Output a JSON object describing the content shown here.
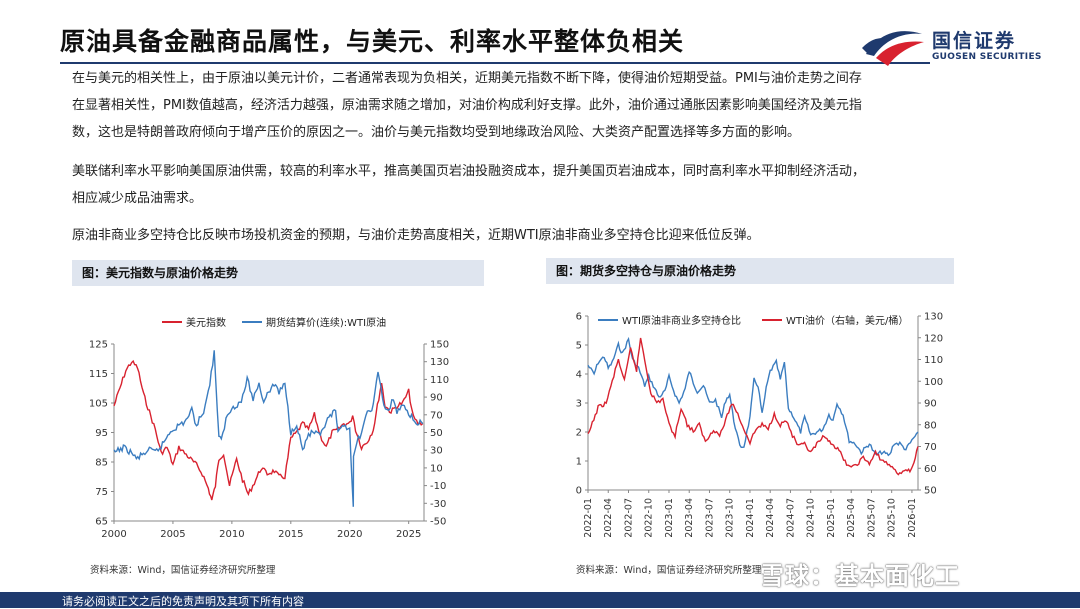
{
  "header": {
    "title": "原油具备金融商品属性，与美元、利率水平整体负相关",
    "logo_cn": "国信证券",
    "logo_en": "GUOSEN SECURITIES"
  },
  "body": {
    "para1_lines": [
      "在与美元的相关性上，由于原油以美元计价，二者通常表现为负相关，近期美元指数不断下降，使得油价短期受益。PMI与油价走势之间存",
      "在显著相关性，PMI数值越高，经济活力越强，原油需求随之增加，对油价构成利好支撑。此外，油价通过通胀因素影响美国经济及美元指",
      "数，这也是特朗普政府倾向于增产压价的原因之一。油价与美元指数均受到地缘政治风险、大类资产配置选择等多方面的影响。"
    ],
    "para2_lines": [
      "美联储利率水平影响美国原油供需，较高的利率水平，推高美国页岩油投融资成本，提升美国页岩油成本，同时高利率水平抑制经济活动，",
      "相应减少成品油需求。"
    ],
    "para3_lines": [
      "原油非商业多空持仓比反映市场投机资金的预期，与油价走势高度相关，近期WTI原油非商业多空持仓比迎来低位反弹。"
    ]
  },
  "left_panel": {
    "heading": "图：美元指数与原油价格走势",
    "source": "资料来源：Wind，国信证券经济研究所整理"
  },
  "right_panel": {
    "heading": "图：期货多空持仓与原油价格走势",
    "source": "资料来源：Wind，国信证券经济研究所整理"
  },
  "footer": {
    "text": "请务必阅读正文之后的免责声明及其项下所有内容"
  },
  "watermark": "雪球：基本面化工",
  "colors": {
    "navy": "#1f3a6e",
    "red": "#d8222f",
    "blue": "#3b7dc0",
    "logo_red": "#d8222f"
  },
  "chart_data": [
    {
      "type": "line",
      "title": "美元指数与原油价格走势",
      "legend": [
        "美元指数",
        "期货结算价(连续):WTI原油"
      ],
      "x_ticks": [
        "2000",
        "2005",
        "2010",
        "2015",
        "2020",
        "2025"
      ],
      "x_range": [
        2000,
        2026.3
      ],
      "y_left_ticks": [
        "125",
        "115",
        "105",
        "95",
        "85",
        "75",
        "65"
      ],
      "y_left_range": [
        65,
        125
      ],
      "y_right_ticks": [
        "150",
        "130",
        "110",
        "90",
        "70",
        "50",
        "30",
        "10",
        "-10",
        "-30",
        "-50"
      ],
      "y_right_range": [
        -50,
        150
      ],
      "series": [
        {
          "name": "美元指数",
          "axis": "left",
          "points": [
            [
              2000,
              104
            ],
            [
              2001,
              116
            ],
            [
              2001.5,
              119
            ],
            [
              2002,
              117
            ],
            [
              2002.5,
              108
            ],
            [
              2003,
              102
            ],
            [
              2003.5,
              96
            ],
            [
              2004,
              88
            ],
            [
              2004.5,
              90
            ],
            [
              2005,
              84
            ],
            [
              2005.5,
              90
            ],
            [
              2006,
              88
            ],
            [
              2006.5,
              86
            ],
            [
              2007,
              84
            ],
            [
              2007.5,
              81
            ],
            [
              2008,
              76
            ],
            [
              2008.3,
              72
            ],
            [
              2008.6,
              77
            ],
            [
              2008.9,
              86
            ],
            [
              2009.3,
              88
            ],
            [
              2009.8,
              77
            ],
            [
              2010.4,
              86
            ],
            [
              2010.9,
              79
            ],
            [
              2011.4,
              74
            ],
            [
              2011.9,
              78
            ],
            [
              2012.5,
              83
            ],
            [
              2013,
              81
            ],
            [
              2013.6,
              82
            ],
            [
              2014,
              80
            ],
            [
              2014.5,
              80
            ],
            [
              2015,
              93
            ],
            [
              2015.5,
              95
            ],
            [
              2016,
              98
            ],
            [
              2016.5,
              96
            ],
            [
              2017,
              101
            ],
            [
              2017.5,
              94
            ],
            [
              2018,
              90
            ],
            [
              2018.5,
              95
            ],
            [
              2019,
              96
            ],
            [
              2019.5,
              98
            ],
            [
              2020,
              98
            ],
            [
              2020.25,
              101
            ],
            [
              2020.5,
              96
            ],
            [
              2021,
              90
            ],
            [
              2021.5,
              92
            ],
            [
              2022,
              96
            ],
            [
              2022.7,
              112
            ],
            [
              2023,
              104
            ],
            [
              2023.5,
              102
            ],
            [
              2024,
              104
            ],
            [
              2024.5,
              105
            ],
            [
              2025,
              109
            ],
            [
              2025.4,
              100
            ],
            [
              2025.8,
              98
            ],
            [
              2026.2,
              98
            ]
          ]
        },
        {
          "name": "期货结算价(连续):WTI原油",
          "axis": "right",
          "points": [
            [
              2000,
              27
            ],
            [
              2000.8,
              33
            ],
            [
              2001.5,
              27
            ],
            [
              2001.9,
              20
            ],
            [
              2002.5,
              26
            ],
            [
              2003,
              30
            ],
            [
              2003.5,
              28
            ],
            [
              2004,
              34
            ],
            [
              2004.8,
              52
            ],
            [
              2005.5,
              58
            ],
            [
              2006,
              62
            ],
            [
              2006.6,
              75
            ],
            [
              2007,
              58
            ],
            [
              2007.6,
              75
            ],
            [
              2008,
              95
            ],
            [
              2008.5,
              140
            ],
            [
              2008.9,
              45
            ],
            [
              2009.1,
              40
            ],
            [
              2009.5,
              65
            ],
            [
              2010,
              78
            ],
            [
              2010.8,
              85
            ],
            [
              2011.3,
              110
            ],
            [
              2011.8,
              88
            ],
            [
              2012.3,
              105
            ],
            [
              2012.7,
              85
            ],
            [
              2013,
              95
            ],
            [
              2013.7,
              105
            ],
            [
              2014,
              95
            ],
            [
              2014.5,
              105
            ],
            [
              2015,
              50
            ],
            [
              2015.5,
              60
            ],
            [
              2016,
              30
            ],
            [
              2016.5,
              48
            ],
            [
              2017,
              50
            ],
            [
              2017.5,
              45
            ],
            [
              2018,
              62
            ],
            [
              2018.8,
              75
            ],
            [
              2019,
              48
            ],
            [
              2019.5,
              58
            ],
            [
              2020,
              55
            ],
            [
              2020.3,
              -37
            ],
            [
              2020.32,
              20
            ],
            [
              2020.6,
              40
            ],
            [
              2021,
              50
            ],
            [
              2021.5,
              72
            ],
            [
              2022,
              80
            ],
            [
              2022.4,
              120
            ],
            [
              2022.9,
              80
            ],
            [
              2023.3,
              72
            ],
            [
              2023.7,
              90
            ],
            [
              2024,
              72
            ],
            [
              2024.5,
              82
            ],
            [
              2025,
              72
            ],
            [
              2025.5,
              62
            ],
            [
              2026.2,
              60
            ]
          ]
        }
      ]
    },
    {
      "type": "line",
      "title": "期货多空持仓与原油价格走势",
      "legend": [
        "WTI原油非商业多空持仓比",
        "WTI油价（右轴，美元/桶）"
      ],
      "x_ticks": [
        "2022-01",
        "2022-04",
        "2022-07",
        "2022-10",
        "2023-01",
        "2023-04",
        "2023-07",
        "2023-10",
        "2024-01",
        "2024-04",
        "2024-07",
        "2024-10",
        "2025-01",
        "2025-04",
        "2025-07",
        "2025-10",
        "2026-01"
      ],
      "x_range": [
        0,
        16.3
      ],
      "y_left_ticks": [
        "6",
        "5",
        "4",
        "3",
        "2",
        "1",
        "0"
      ],
      "y_left_range": [
        0,
        6
      ],
      "y_right_ticks": [
        "130",
        "120",
        "110",
        "100",
        "90",
        "80",
        "70",
        "60",
        "50"
      ],
      "y_right_range": [
        50,
        130
      ],
      "series": [
        {
          "name": "WTI原油非商业多空持仓比",
          "axis": "left",
          "points": [
            [
              0,
              4.3
            ],
            [
              0.3,
              4.0
            ],
            [
              0.5,
              4.4
            ],
            [
              0.8,
              4.6
            ],
            [
              1.0,
              4.2
            ],
            [
              1.2,
              4.4
            ],
            [
              1.5,
              5.0
            ],
            [
              1.7,
              4.7
            ],
            [
              2.0,
              5.2
            ],
            [
              2.2,
              4.5
            ],
            [
              2.5,
              4.2
            ],
            [
              2.8,
              3.6
            ],
            [
              3.0,
              3.9
            ],
            [
              3.3,
              3.5
            ],
            [
              3.5,
              3.2
            ],
            [
              3.8,
              3.4
            ],
            [
              4.0,
              3.9
            ],
            [
              4.3,
              3.3
            ],
            [
              4.5,
              3.0
            ],
            [
              4.8,
              3.5
            ],
            [
              5.0,
              4.1
            ],
            [
              5.2,
              3.7
            ],
            [
              5.4,
              3.4
            ],
            [
              5.7,
              3.6
            ],
            [
              6.0,
              3.0
            ],
            [
              6.3,
              3.1
            ],
            [
              6.6,
              2.5
            ],
            [
              6.8,
              3.1
            ],
            [
              7.0,
              3.3
            ],
            [
              7.2,
              2.4
            ],
            [
              7.5,
              1.5
            ],
            [
              7.7,
              1.5
            ],
            [
              8.0,
              2.5
            ],
            [
              8.2,
              3.8
            ],
            [
              8.4,
              3.6
            ],
            [
              8.6,
              2.6
            ],
            [
              8.8,
              3.5
            ],
            [
              9.0,
              4.1
            ],
            [
              9.3,
              4.4
            ],
            [
              9.5,
              3.8
            ],
            [
              9.7,
              4.4
            ],
            [
              9.9,
              2.8
            ],
            [
              10.1,
              2.6
            ],
            [
              10.5,
              2.0
            ],
            [
              10.7,
              2.5
            ],
            [
              11.0,
              1.9
            ],
            [
              11.3,
              2.0
            ],
            [
              11.6,
              2.1
            ],
            [
              11.9,
              2.6
            ],
            [
              12.1,
              2.4
            ],
            [
              12.3,
              3.0
            ],
            [
              12.6,
              2.6
            ],
            [
              12.9,
              1.7
            ],
            [
              13.2,
              1.6
            ],
            [
              13.5,
              1.3
            ],
            [
              13.9,
              1.6
            ],
            [
              14.2,
              1.2
            ],
            [
              14.5,
              1.3
            ],
            [
              14.9,
              1.2
            ],
            [
              15.1,
              1.6
            ],
            [
              15.4,
              1.6
            ],
            [
              15.7,
              1.4
            ],
            [
              16.0,
              1.7
            ],
            [
              16.3,
              2.0
            ]
          ]
        },
        {
          "name": "WTI油价（右轴，美元/桶）",
          "axis": "right",
          "points": [
            [
              0,
              75
            ],
            [
              0.5,
              88
            ],
            [
              0.9,
              90
            ],
            [
              1.2,
              100
            ],
            [
              1.5,
              110
            ],
            [
              1.8,
              100
            ],
            [
              2.1,
              115
            ],
            [
              2.4,
              105
            ],
            [
              2.6,
              120
            ],
            [
              2.8,
              110
            ],
            [
              3.1,
              95
            ],
            [
              3.4,
              90
            ],
            [
              3.7,
              92
            ],
            [
              4.0,
              80
            ],
            [
              4.3,
              75
            ],
            [
              4.6,
              88
            ],
            [
              4.9,
              80
            ],
            [
              5.2,
              77
            ],
            [
              5.5,
              80
            ],
            [
              5.8,
              72
            ],
            [
              6.2,
              78
            ],
            [
              6.5,
              75
            ],
            [
              6.8,
              82
            ],
            [
              7.1,
              90
            ],
            [
              7.4,
              85
            ],
            [
              7.7,
              78
            ],
            [
              8.0,
              72
            ],
            [
              8.3,
              78
            ],
            [
              8.6,
              80
            ],
            [
              8.9,
              78
            ],
            [
              9.2,
              85
            ],
            [
              9.5,
              80
            ],
            [
              9.8,
              82
            ],
            [
              10.1,
              75
            ],
            [
              10.4,
              70
            ],
            [
              10.7,
              71
            ],
            [
              11.0,
              67
            ],
            [
              11.3,
              71
            ],
            [
              11.6,
              74
            ],
            [
              12.0,
              72
            ],
            [
              12.4,
              68
            ],
            [
              12.7,
              63
            ],
            [
              13.0,
              60
            ],
            [
              13.3,
              62
            ],
            [
              13.6,
              65
            ],
            [
              13.9,
              62
            ],
            [
              14.2,
              67
            ],
            [
              14.5,
              64
            ],
            [
              14.8,
              62
            ],
            [
              15.1,
              60
            ],
            [
              15.4,
              57
            ],
            [
              15.7,
              60
            ],
            [
              15.9,
              58
            ],
            [
              16.1,
              62
            ],
            [
              16.3,
              70
            ]
          ]
        }
      ]
    }
  ]
}
